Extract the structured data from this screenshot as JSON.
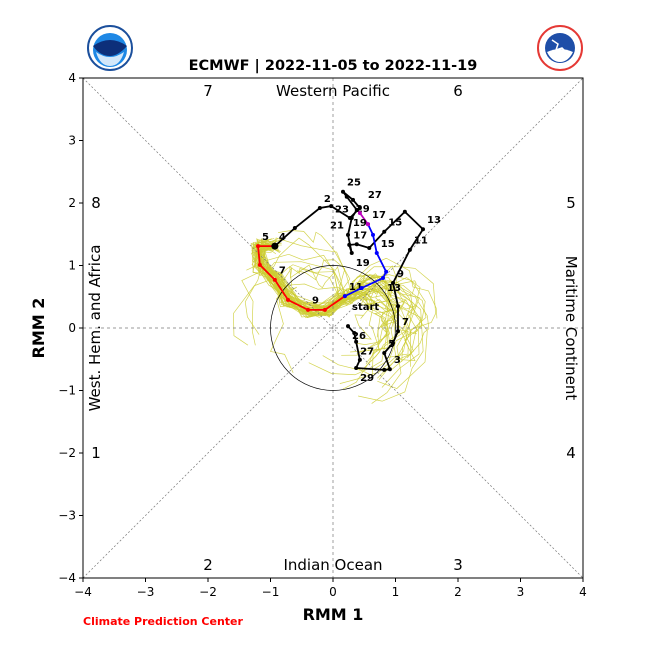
{
  "chart_data": {
    "type": "line",
    "title": "ECMWF | 2022-11-05 to 2022-11-19",
    "xlabel": "RMM 1",
    "ylabel": "RMM 2",
    "xlim": [
      -4,
      4
    ],
    "ylim": [
      -4,
      4
    ],
    "xticks": [
      "−4",
      "−3",
      "−2",
      "−1",
      "0",
      "1",
      "2",
      "3",
      "4"
    ],
    "yticks": [
      "−4",
      "−3",
      "−2",
      "−1",
      "0",
      "1",
      "2",
      "3",
      "4"
    ],
    "regions": {
      "top": "Western Pacific",
      "bottom": "Indian Ocean",
      "left": "West. Hem. and Africa",
      "right": "Maritime Continent"
    },
    "phases": [
      {
        "label": "1",
        "pos": "left-lower"
      },
      {
        "label": "2",
        "pos": "bottom-left"
      },
      {
        "label": "3",
        "pos": "bottom-right"
      },
      {
        "label": "4",
        "pos": "right-lower"
      },
      {
        "label": "5",
        "pos": "right-upper"
      },
      {
        "label": "6",
        "pos": "top-right"
      },
      {
        "label": "7",
        "pos": "top-left"
      },
      {
        "label": "8",
        "pos": "left-upper"
      }
    ],
    "start_label": "start",
    "series": [
      {
        "name": "observed",
        "color": "#000000",
        "points": [
          [
            0.24,
            0.03
          ],
          [
            0.34,
            -0.08
          ],
          [
            0.37,
            -0.22
          ],
          [
            0.43,
            -0.51
          ],
          [
            0.37,
            -0.64
          ],
          [
            0.82,
            -0.67
          ],
          [
            0.91,
            -0.66
          ],
          [
            0.82,
            -0.4
          ],
          [
            0.96,
            -0.24
          ],
          [
            1.04,
            -0.05
          ],
          [
            1.04,
            0.35
          ],
          [
            0.96,
            0.72
          ],
          [
            1.23,
            1.25
          ],
          [
            1.44,
            1.58
          ],
          [
            1.15,
            1.86
          ],
          [
            0.82,
            1.54
          ],
          [
            0.58,
            1.28
          ],
          [
            0.38,
            1.34
          ],
          [
            0.26,
            1.33
          ],
          [
            0.3,
            1.2
          ],
          [
            0.24,
            1.49
          ],
          [
            0.3,
            1.76
          ],
          [
            0.38,
            1.89
          ],
          [
            0.22,
            2.1
          ],
          [
            0.16,
            2.18
          ],
          [
            0.32,
            2.05
          ],
          [
            0.43,
            1.92
          ],
          [
            0.27,
            1.76
          ],
          [
            -0.03,
            1.95
          ],
          [
            -0.21,
            1.92
          ],
          [
            -0.61,
            1.6
          ],
          [
            -0.93,
            1.31
          ]
        ],
        "labels": [
          {
            "i": 0,
            "t": "26"
          },
          {
            "i": 2,
            "t": "27"
          },
          {
            "i": 4,
            "t": "29"
          },
          {
            "i": 7,
            "t": "5"
          },
          {
            "i": 6,
            "t": "3"
          },
          {
            "i": 9,
            "t": "7"
          },
          {
            "i": 11,
            "t": "9"
          },
          {
            "i": 12,
            "t": "11"
          },
          {
            "i": 13,
            "t": "13"
          },
          {
            "i": 15,
            "t": "15"
          },
          {
            "i": 18,
            "t": "17"
          },
          {
            "i": 19,
            "t": "19"
          },
          {
            "i": 20,
            "t": "21"
          },
          {
            "i": 21,
            "t": "29"
          },
          {
            "i": 24,
            "t": "25"
          },
          {
            "i": 25,
            "t": "23"
          },
          {
            "i": 26,
            "t": "27"
          },
          {
            "i": 29,
            "t": "2"
          },
          {
            "i": 31,
            "t": "4"
          }
        ]
      },
      {
        "name": "forecast-week1",
        "color": "#ff0000",
        "points": [
          [
            -0.93,
            1.31
          ],
          [
            -1.2,
            1.31
          ],
          [
            -1.17,
            1.01
          ],
          [
            -0.93,
            0.77
          ],
          [
            -0.72,
            0.45
          ],
          [
            -0.4,
            0.29
          ],
          [
            -0.13,
            0.29
          ],
          [
            0.19,
            0.51
          ]
        ],
        "labels": [
          {
            "i": 1,
            "t": "5"
          },
          {
            "i": 3,
            "t": "7"
          },
          {
            "i": 5,
            "t": "9"
          },
          {
            "i": 7,
            "t": "11"
          }
        ]
      },
      {
        "name": "forecast-week2",
        "color": "#0000ff",
        "points": [
          [
            0.19,
            0.51
          ],
          [
            0.46,
            0.64
          ],
          [
            0.8,
            0.8
          ],
          [
            0.85,
            0.9
          ],
          [
            0.7,
            1.2
          ],
          [
            0.64,
            1.49
          ],
          [
            0.56,
            1.66
          ]
        ],
        "labels": [
          {
            "i": 2,
            "t": "13"
          },
          {
            "i": 4,
            "t": "15"
          },
          {
            "i": 6,
            "t": "17"
          }
        ]
      },
      {
        "name": "forecast-week3",
        "color": "#bb00bb",
        "points": [
          [
            0.56,
            1.66
          ],
          [
            0.43,
            1.84
          ]
        ],
        "labels": [
          {
            "i": 1,
            "t": "19"
          }
        ]
      }
    ],
    "ensemble_color": "#cccc33",
    "grid": false
  },
  "footer": {
    "credit": "Climate Prediction Center",
    "credit_color": "#ff0000"
  },
  "logos": {
    "left": "NOAA",
    "right": "NATIONAL WEATHER SERVICE"
  }
}
